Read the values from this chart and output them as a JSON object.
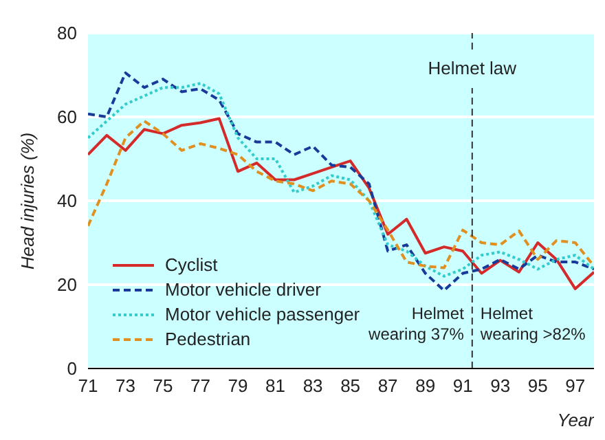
{
  "chart_data": {
    "type": "line",
    "xlabel": "Year",
    "ylabel": "Head injuries (%)",
    "x": [
      71,
      72,
      73,
      74,
      75,
      76,
      77,
      78,
      79,
      80,
      81,
      82,
      83,
      84,
      85,
      86,
      87,
      88,
      89,
      90,
      91,
      92,
      93,
      94,
      95,
      96,
      97,
      98
    ],
    "series": [
      {
        "name": "Cyclist",
        "color": "#d42a2a",
        "line_style": "solid",
        "values": [
          51,
          55.6,
          52,
          57,
          56,
          58,
          58.6,
          59.6,
          47,
          49,
          45,
          45,
          46.5,
          48,
          49.5,
          43,
          32,
          35.6,
          27.5,
          29,
          28,
          22.7,
          25.8,
          23,
          30,
          26,
          19,
          23
        ]
      },
      {
        "name": "Motor vehicle driver",
        "color": "#1a3a9a",
        "line_style": "dashed",
        "values": [
          60.7,
          60,
          70.5,
          67,
          69,
          66,
          66.7,
          64,
          56,
          54,
          54,
          51,
          53,
          48.5,
          48,
          44,
          28,
          29.5,
          22.7,
          18.6,
          22.7,
          23.7,
          26,
          23.7,
          27,
          25.4,
          25.4,
          23.7
        ]
      },
      {
        "name": "Motor vehicle passenger",
        "color": "#33cccc",
        "line_style": "dotted",
        "values": [
          55,
          59,
          63,
          65,
          67,
          67,
          68,
          65.5,
          55,
          50,
          50,
          42,
          43.5,
          46,
          45,
          40,
          29.5,
          28,
          24.4,
          22,
          23.7,
          27,
          27.8,
          26,
          23.7,
          26,
          27,
          23.7
        ]
      },
      {
        "name": "Pedestrian",
        "color": "#e09020",
        "line_style": "dashed",
        "values": [
          34,
          44,
          55,
          59,
          56,
          52,
          53.6,
          52.5,
          51,
          47,
          44.7,
          44,
          42.4,
          44.7,
          44,
          40,
          33,
          25.4,
          24.4,
          24,
          33,
          30,
          29.5,
          32.8,
          26,
          30.5,
          30,
          24.4
        ]
      }
    ],
    "xlim": [
      71,
      98
    ],
    "xticks": [
      71,
      73,
      75,
      77,
      79,
      81,
      83,
      85,
      87,
      89,
      91,
      93,
      95,
      97
    ],
    "ylim": [
      0,
      80
    ],
    "yticks": [
      0,
      20,
      40,
      60,
      80
    ],
    "grid": "y",
    "legend": "bottom left",
    "marker": "none",
    "ref_lines": [
      {
        "axis": "x",
        "value": 91.5,
        "label": "Helmet law",
        "color": "#333333",
        "line_style": "dashed"
      }
    ],
    "annotations": [
      "Helmet wearing 37%",
      "Helmet wearing >82%"
    ]
  }
}
